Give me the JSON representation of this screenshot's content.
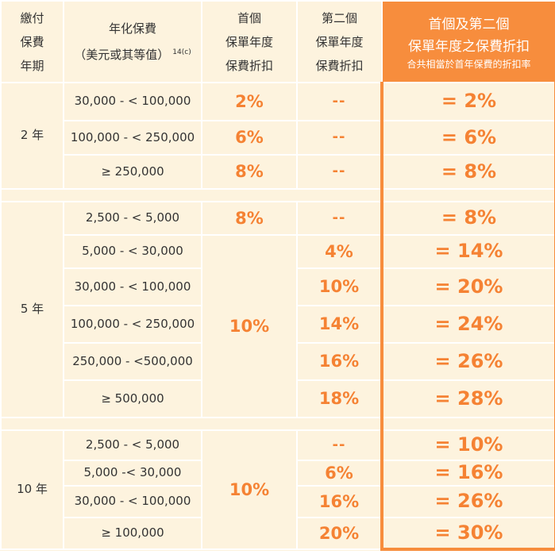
{
  "header": {
    "term_l1": "繳付",
    "term_l2": "保費",
    "term_l3": "年期",
    "prem_l1": "年化保費",
    "prem_l2": "（美元或其等值）",
    "prem_sup": "14(c)",
    "first_l1": "首個",
    "first_l2": "保單年度",
    "first_l3": "保費折扣",
    "second_l1": "第二個",
    "second_l2": "保單年度",
    "second_l3": "保費折扣",
    "total_l1": "首個及第二個",
    "total_l2": "保單年度之保費折扣",
    "total_l3": "合共相當於首年保費的折扣率"
  },
  "groups": [
    {
      "term": "2 年",
      "rows": [
        {
          "premium": "30,000 - < 100,000",
          "first": "2%",
          "second": "--",
          "total": "= 2%"
        },
        {
          "premium": "100,000 - < 250,000",
          "first": "6%",
          "second": "--",
          "total": "= 6%"
        },
        {
          "premium": "≥ 250,000",
          "first": "8%",
          "second": "--",
          "total": "= 8%"
        }
      ]
    },
    {
      "term": "5 年",
      "first_merged": "10%",
      "rows": [
        {
          "premium": "2,500 - < 5,000",
          "first": "8%",
          "second": "--",
          "total": "= 8%"
        },
        {
          "premium": "5,000 - < 30,000",
          "second": "4%",
          "total": "= 14%"
        },
        {
          "premium": "30,000 - < 100,000",
          "second": "10%",
          "total": "= 20%"
        },
        {
          "premium": "100,000 - < 250,000",
          "second": "14%",
          "total": "= 24%"
        },
        {
          "premium": "250,000 - <500,000",
          "second": "16%",
          "total": "= 26%"
        },
        {
          "premium": "≥ 500,000",
          "second": "18%",
          "total": "= 28%"
        }
      ]
    },
    {
      "term": "10 年",
      "first_merged": "10%",
      "rows": [
        {
          "premium": "2,500 - < 5,000",
          "second": "--",
          "total": "= 10%"
        },
        {
          "premium": "5,000 -< 30,000",
          "second": "6%",
          "total": "= 16%"
        },
        {
          "premium": "30,000 - < 100,000",
          "second": "16%",
          "total": "= 26%"
        },
        {
          "premium": "≥ 100,000",
          "second": "20%",
          "total": "= 30%"
        }
      ]
    }
  ]
}
